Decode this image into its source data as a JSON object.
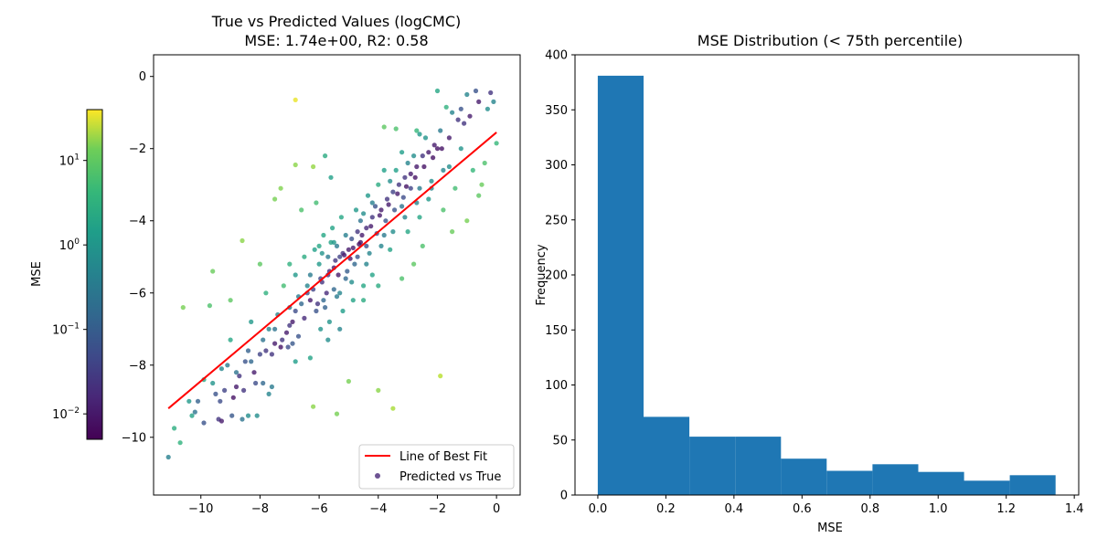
{
  "chart_data": [
    {
      "type": "scatter",
      "title": "True vs Predicted Values (logCMC)",
      "subtitle": "MSE: 1.74e+00, R2: 0.58",
      "xlabel": "",
      "ylabel": "",
      "xlim": [
        -11.6,
        0.8
      ],
      "ylim": [
        -11.6,
        0.6
      ],
      "xticks": [
        -10,
        -8,
        -6,
        -4,
        -2,
        0
      ],
      "yticks": [
        -10,
        -8,
        -6,
        -4,
        -2,
        0
      ],
      "xtick_labels": [
        "−10",
        "−8",
        "−6",
        "−4",
        "−2",
        "0"
      ],
      "ytick_labels": [
        "−10",
        "−8",
        "−6",
        "−4",
        "−2",
        "0"
      ],
      "grid": false,
      "legend_position": "lower-right",
      "legend": [
        {
          "label": "Line of Best Fit",
          "kind": "line",
          "color": "#ff0000"
        },
        {
          "label": "Predicted vs True",
          "kind": "marker",
          "color": "#482878"
        }
      ],
      "best_fit": {
        "x": [
          -11.1,
          0.0
        ],
        "y": [
          -9.2,
          -1.55
        ],
        "color": "#ff0000"
      },
      "colorbar": {
        "label": "MSE",
        "scale": "log",
        "range": [
          0.005,
          40
        ],
        "ticks": [
          0.01,
          0.1,
          1,
          10
        ],
        "tick_labels": [
          {
            "base": "10",
            "exp": "−2"
          },
          {
            "base": "10",
            "exp": "−1"
          },
          {
            "base": "10",
            "exp": "0"
          },
          {
            "base": "10",
            "exp": "1"
          }
        ],
        "colormap": "viridis"
      },
      "points": [
        [
          -11.1,
          -10.55,
          0.25
        ],
        [
          -10.9,
          -9.75,
          1.3
        ],
        [
          -10.7,
          -10.15,
          1.6
        ],
        [
          -10.6,
          -6.4,
          6.0
        ],
        [
          -10.3,
          -9.4,
          0.9
        ],
        [
          -10.1,
          -9.0,
          0.08
        ],
        [
          -9.9,
          -9.6,
          0.05
        ],
        [
          -9.7,
          -6.35,
          3.0
        ],
        [
          -9.6,
          -5.4,
          5.0
        ],
        [
          -9.5,
          -8.8,
          0.05
        ],
        [
          -9.4,
          -9.5,
          0.02
        ],
        [
          -9.3,
          -9.55,
          0.01
        ],
        [
          -9.2,
          -8.7,
          0.03
        ],
        [
          -9.1,
          -8.0,
          0.2
        ],
        [
          -9.0,
          -6.2,
          4.0
        ],
        [
          -8.9,
          -8.9,
          0.008
        ],
        [
          -8.8,
          -8.6,
          0.01
        ],
        [
          -8.7,
          -8.3,
          0.02
        ],
        [
          -8.6,
          -9.5,
          0.15
        ],
        [
          -8.5,
          -7.9,
          0.05
        ],
        [
          -8.4,
          -7.6,
          0.08
        ],
        [
          -8.3,
          -6.8,
          0.6
        ],
        [
          -8.2,
          -8.2,
          0.01
        ],
        [
          -8.1,
          -9.4,
          0.4
        ],
        [
          -8.0,
          -7.7,
          0.03
        ],
        [
          -7.9,
          -8.5,
          0.1
        ],
        [
          -7.8,
          -7.6,
          0.02
        ],
        [
          -7.7,
          -7.0,
          0.3
        ],
        [
          -7.6,
          -8.6,
          0.2
        ],
        [
          -7.5,
          -7.4,
          0.01
        ],
        [
          -7.4,
          -6.6,
          0.3
        ],
        [
          -7.3,
          -7.5,
          0.008
        ],
        [
          -7.2,
          -5.8,
          2.5
        ],
        [
          -7.1,
          -7.1,
          0.01
        ],
        [
          -7.0,
          -6.9,
          0.02
        ],
        [
          -6.9,
          -7.4,
          0.06
        ],
        [
          -6.8,
          -0.65,
          30
        ],
        [
          -6.8,
          -6.5,
          0.04
        ],
        [
          -6.7,
          -7.2,
          0.05
        ],
        [
          -6.6,
          -6.3,
          0.1
        ],
        [
          -6.5,
          -6.7,
          0.015
        ],
        [
          -6.4,
          -5.8,
          0.3
        ],
        [
          -6.3,
          -6.2,
          0.01
        ],
        [
          -6.2,
          -5.9,
          0.03
        ],
        [
          -6.1,
          -6.5,
          0.05
        ],
        [
          -6.0,
          -5.2,
          0.6
        ],
        [
          -5.9,
          -5.7,
          0.02
        ],
        [
          -5.8,
          -6.4,
          0.08
        ],
        [
          -5.7,
          -5.5,
          0.02
        ],
        [
          -5.6,
          -4.6,
          0.9
        ],
        [
          -5.5,
          -5.3,
          0.01
        ],
        [
          -5.4,
          -6.1,
          0.2
        ],
        [
          -5.3,
          -5.0,
          0.03
        ],
        [
          -5.2,
          -4.9,
          0.02
        ],
        [
          -5.1,
          -5.6,
          0.1
        ],
        [
          -5.0,
          -4.8,
          0.01
        ],
        [
          -4.9,
          -4.5,
          0.05
        ],
        [
          -4.8,
          -5.2,
          0.1
        ],
        [
          -4.7,
          -4.3,
          0.02
        ],
        [
          -4.6,
          -4.6,
          0.008
        ],
        [
          -4.5,
          -3.8,
          0.4
        ],
        [
          -4.4,
          -4.2,
          0.015
        ],
        [
          -4.3,
          -4.9,
          0.3
        ],
        [
          -4.2,
          -3.9,
          0.02
        ],
        [
          -4.1,
          -3.6,
          0.05
        ],
        [
          -4.0,
          -3.0,
          1.2
        ],
        [
          -3.9,
          -3.7,
          0.01
        ],
        [
          -3.8,
          -4.4,
          0.2
        ],
        [
          -3.7,
          -3.4,
          0.02
        ],
        [
          -3.6,
          -2.9,
          0.4
        ],
        [
          -3.5,
          -3.2,
          0.03
        ],
        [
          -3.4,
          -2.6,
          0.8
        ],
        [
          -3.3,
          -3.0,
          0.02
        ],
        [
          -3.2,
          -3.6,
          0.15
        ],
        [
          -3.1,
          -2.8,
          0.02
        ],
        [
          -3.0,
          -2.4,
          0.3
        ],
        [
          -2.9,
          -2.7,
          0.01
        ],
        [
          -2.8,
          -2.2,
          0.4
        ],
        [
          -2.7,
          -2.5,
          0.01
        ],
        [
          -2.6,
          -3.1,
          0.2
        ],
        [
          -2.5,
          -2.2,
          0.02
        ],
        [
          -2.4,
          -1.7,
          0.5
        ],
        [
          -2.3,
          -2.1,
          0.01
        ],
        [
          -2.2,
          -2.9,
          0.4
        ],
        [
          -2.1,
          -1.9,
          0.01
        ],
        [
          -2.0,
          -2.0,
          0.008
        ],
        [
          -1.9,
          -1.5,
          0.2
        ],
        [
          -1.8,
          -3.7,
          3.0
        ],
        [
          -1.7,
          -0.85,
          1.5
        ],
        [
          -1.6,
          -1.7,
          0.01
        ],
        [
          -1.5,
          -1.0,
          0.3
        ],
        [
          -1.4,
          -3.1,
          2.5
        ],
        [
          -1.3,
          -1.2,
          0.02
        ],
        [
          -1.2,
          -0.9,
          0.05
        ],
        [
          -1.1,
          -1.3,
          0.02
        ],
        [
          -1.0,
          -0.5,
          0.3
        ],
        [
          -0.9,
          -1.1,
          0.01
        ],
        [
          -0.8,
          -2.6,
          2.0
        ],
        [
          -0.7,
          -0.4,
          0.05
        ],
        [
          -0.6,
          -0.7,
          0.01
        ],
        [
          -0.5,
          -3.0,
          5.0
        ],
        [
          -0.4,
          -2.4,
          3.0
        ],
        [
          -0.3,
          -0.9,
          0.4
        ],
        [
          -0.2,
          -0.45,
          0.02
        ],
        [
          -0.1,
          -0.7,
          0.3
        ],
        [
          0.0,
          -1.85,
          2.0
        ],
        [
          -1.9,
          -8.3,
          15
        ],
        [
          -3.5,
          -9.2,
          12
        ],
        [
          -6.2,
          -9.15,
          8
        ],
        [
          -5.4,
          -9.35,
          6
        ],
        [
          -6.8,
          -2.45,
          8
        ],
        [
          -6.2,
          -2.5,
          9
        ],
        [
          -7.5,
          -3.4,
          6
        ],
        [
          -7.3,
          -3.1,
          7
        ],
        [
          -8.6,
          -4.55,
          8
        ],
        [
          -4.0,
          -8.7,
          8
        ],
        [
          -5.0,
          -8.45,
          6
        ],
        [
          -3.4,
          -1.45,
          3.0
        ],
        [
          -3.8,
          -1.4,
          4.0
        ],
        [
          -2.7,
          -1.5,
          2.0
        ],
        [
          -2.0,
          -0.4,
          1.0
        ],
        [
          -5.8,
          -2.2,
          1.2
        ],
        [
          -5.6,
          -2.8,
          0.8
        ],
        [
          -6.6,
          -3.7,
          3.0
        ],
        [
          -6.1,
          -3.5,
          2.5
        ],
        [
          -6.3,
          -7.8,
          0.9
        ],
        [
          -6.8,
          -7.9,
          0.7
        ],
        [
          -5.7,
          -7.3,
          0.4
        ],
        [
          -5.3,
          -7.0,
          0.3
        ],
        [
          -4.5,
          -6.2,
          1.2
        ],
        [
          -4.0,
          -5.8,
          1.2
        ],
        [
          -3.2,
          -5.6,
          3.0
        ],
        [
          -2.8,
          -5.2,
          4.0
        ],
        [
          -2.5,
          -4.7,
          3.0
        ],
        [
          -1.5,
          -4.3,
          5.0
        ],
        [
          -1.0,
          -4.0,
          6.0
        ],
        [
          -0.6,
          -3.3,
          4.0
        ],
        [
          -7.8,
          -6.0,
          1.5
        ],
        [
          -8.0,
          -5.2,
          4.0
        ],
        [
          -9.0,
          -7.3,
          1.0
        ],
        [
          -9.3,
          -8.1,
          0.3
        ],
        [
          -10.2,
          -9.3,
          0.15
        ],
        [
          -7.7,
          -8.8,
          0.3
        ],
        [
          -8.4,
          -9.4,
          0.4
        ],
        [
          -6.9,
          -6.8,
          0.01
        ],
        [
          -6.4,
          -6.0,
          0.05
        ],
        [
          -5.95,
          -5.6,
          0.03
        ],
        [
          -5.65,
          -5.4,
          0.015
        ],
        [
          -5.45,
          -5.1,
          0.02
        ],
        [
          -5.15,
          -4.95,
          0.01
        ],
        [
          -4.85,
          -4.75,
          0.01
        ],
        [
          -4.55,
          -4.4,
          0.01
        ],
        [
          -4.25,
          -4.15,
          0.01
        ],
        [
          -3.95,
          -3.85,
          0.01
        ],
        [
          -3.65,
          -3.55,
          0.01
        ],
        [
          -3.35,
          -3.25,
          0.01
        ],
        [
          -3.05,
          -3.05,
          0.008
        ],
        [
          -2.75,
          -2.8,
          0.008
        ],
        [
          -2.45,
          -2.5,
          0.008
        ],
        [
          -2.15,
          -2.25,
          0.008
        ],
        [
          -1.85,
          -2.0,
          0.008
        ],
        [
          -6.05,
          -6.3,
          0.02
        ],
        [
          -5.75,
          -6.0,
          0.015
        ],
        [
          -5.35,
          -5.5,
          0.01
        ],
        [
          -4.95,
          -5.05,
          0.01
        ],
        [
          -4.65,
          -4.65,
          0.008
        ],
        [
          -7.05,
          -7.5,
          0.04
        ],
        [
          -7.25,
          -7.3,
          0.02
        ],
        [
          -7.6,
          -7.7,
          0.02
        ],
        [
          -8.15,
          -8.5,
          0.04
        ],
        [
          -8.55,
          -8.7,
          0.02
        ],
        [
          -8.95,
          -9.4,
          0.06
        ],
        [
          -9.35,
          -9.0,
          0.04
        ],
        [
          -5.55,
          -4.2,
          0.9
        ],
        [
          -5.85,
          -4.4,
          1.0
        ],
        [
          -6.15,
          -4.8,
          0.8
        ],
        [
          -5.25,
          -3.9,
          1.0
        ],
        [
          -4.75,
          -3.7,
          0.6
        ],
        [
          -4.35,
          -3.3,
          0.6
        ],
        [
          -5.65,
          -6.8,
          0.5
        ],
        [
          -5.95,
          -7.0,
          0.5
        ],
        [
          -5.2,
          -6.5,
          0.7
        ],
        [
          -4.85,
          -6.2,
          0.9
        ],
        [
          -6.5,
          -5.0,
          1.2
        ],
        [
          -6.8,
          -5.5,
          0.6
        ],
        [
          -7.0,
          -5.2,
          1.5
        ],
        [
          -3.8,
          -2.6,
          0.8
        ],
        [
          -3.2,
          -2.1,
          0.7
        ],
        [
          -2.6,
          -1.6,
          0.6
        ],
        [
          -2.3,
          -3.4,
          0.6
        ],
        [
          -1.6,
          -2.5,
          0.4
        ],
        [
          -1.2,
          -2.0,
          0.5
        ],
        [
          -4.5,
          -5.8,
          1.0
        ],
        [
          -4.2,
          -5.5,
          0.9
        ],
        [
          -3.6,
          -4.8,
          0.9
        ],
        [
          -3.0,
          -4.3,
          1.0
        ],
        [
          -2.6,
          -3.9,
          1.0
        ],
        [
          -5.9,
          -4.9,
          0.5
        ],
        [
          -5.5,
          -4.6,
          0.6
        ],
        [
          -6.3,
          -5.5,
          0.2
        ],
        [
          -6.0,
          -4.7,
          1.0
        ],
        [
          -5.3,
          -6.0,
          0.3
        ],
        [
          -4.9,
          -5.7,
          0.4
        ],
        [
          -4.4,
          -5.2,
          0.3
        ],
        [
          -3.9,
          -4.7,
          0.3
        ],
        [
          -3.5,
          -4.3,
          0.4
        ],
        [
          -3.1,
          -3.9,
          0.3
        ],
        [
          -2.7,
          -3.5,
          0.3
        ],
        [
          -2.2,
          -3.1,
          0.3
        ],
        [
          -1.8,
          -2.6,
          0.3
        ],
        [
          -6.7,
          -6.1,
          0.2
        ],
        [
          -7.0,
          -6.4,
          0.2
        ],
        [
          -7.5,
          -7.0,
          0.15
        ],
        [
          -7.9,
          -7.3,
          0.15
        ],
        [
          -8.3,
          -7.9,
          0.1
        ],
        [
          -8.8,
          -8.2,
          0.15
        ],
        [
          -9.6,
          -8.5,
          0.5
        ],
        [
          -9.9,
          -8.4,
          1.0
        ],
        [
          -10.4,
          -9.0,
          0.6
        ],
        [
          -5.7,
          -5.0,
          0.2
        ],
        [
          -5.4,
          -4.7,
          0.2
        ],
        [
          -5.1,
          -4.4,
          0.25
        ],
        [
          -4.6,
          -4.0,
          0.15
        ],
        [
          -4.2,
          -3.5,
          0.25
        ],
        [
          -5.85,
          -6.2,
          0.1
        ],
        [
          -5.5,
          -5.9,
          0.1
        ],
        [
          -5.05,
          -5.4,
          0.07
        ],
        [
          -4.7,
          -5.0,
          0.05
        ],
        [
          -4.4,
          -4.7,
          0.05
        ],
        [
          -4.05,
          -4.35,
          0.05
        ],
        [
          -3.75,
          -4.0,
          0.05
        ],
        [
          -3.45,
          -3.7,
          0.05
        ],
        [
          -3.15,
          -3.35,
          0.04
        ],
        [
          -2.9,
          -3.1,
          0.03
        ]
      ]
    },
    {
      "type": "bar",
      "title": "MSE Distribution (< 75th percentile)",
      "xlabel": "MSE",
      "ylabel": "Frequency",
      "xlim": [
        -0.067,
        1.413
      ],
      "ylim": [
        0,
        400
      ],
      "xticks": [
        0.0,
        0.2,
        0.4,
        0.6,
        0.8,
        1.0,
        1.2,
        1.4
      ],
      "xtick_labels": [
        "0.0",
        "0.2",
        "0.4",
        "0.6",
        "0.8",
        "1.0",
        "1.2",
        "1.4"
      ],
      "yticks": [
        0,
        50,
        100,
        150,
        200,
        250,
        300,
        350,
        400
      ],
      "ytick_labels": [
        "0",
        "50",
        "100",
        "150",
        "200",
        "250",
        "300",
        "350",
        "400"
      ],
      "color": "#1f77b4",
      "bin_edges": [
        0.0,
        0.1345,
        0.269,
        0.4035,
        0.538,
        0.6725,
        0.807,
        0.9415,
        1.076,
        1.2105,
        1.345
      ],
      "values": [
        381,
        71,
        53,
        53,
        33,
        22,
        28,
        21,
        13,
        18
      ]
    }
  ]
}
